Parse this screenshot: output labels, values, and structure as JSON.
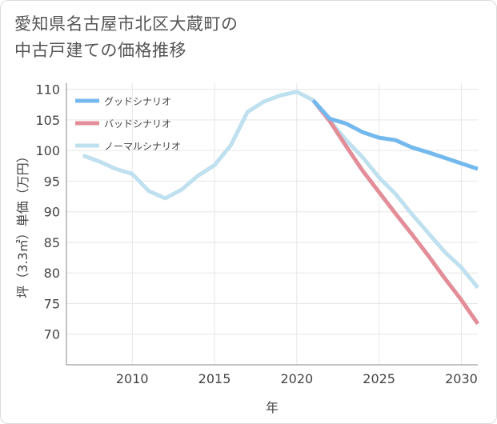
{
  "title": {
    "line1": "愛知県名古屋市北区大蔵町の",
    "line2": "中古戸建ての価格推移"
  },
  "chart_data": {
    "type": "line",
    "title": "愛知県名古屋市北区大蔵町の中古戸建ての価格推移",
    "xlabel": "年",
    "ylabel": "坪（3.3㎡）単価（万円）",
    "xlim": [
      2006,
      2031
    ],
    "ylim": [
      65,
      111
    ],
    "xticks": [
      2010,
      2015,
      2020,
      2025,
      2030
    ],
    "yticks": [
      70,
      75,
      80,
      85,
      90,
      95,
      100,
      105,
      110
    ],
    "legend_position": "top-left",
    "series": [
      {
        "name": "グッドシナリオ",
        "color": "#74b9ee",
        "points": [
          [
            2021,
            108.2
          ],
          [
            2022,
            105.2
          ],
          [
            2023,
            104.4
          ],
          [
            2024,
            103.0
          ],
          [
            2025,
            102.1
          ],
          [
            2026,
            101.7
          ],
          [
            2027,
            100.5
          ],
          [
            2028,
            99.7
          ],
          [
            2029,
            98.8
          ],
          [
            2030,
            97.9
          ],
          [
            2031,
            97.0
          ]
        ]
      },
      {
        "name": "バッドシナリオ",
        "color": "#e28d98",
        "points": [
          [
            2021,
            108.2
          ],
          [
            2022,
            104.8
          ],
          [
            2023,
            100.7
          ],
          [
            2024,
            96.7
          ],
          [
            2025,
            93.2
          ],
          [
            2026,
            89.7
          ],
          [
            2027,
            86.3
          ],
          [
            2028,
            82.8
          ],
          [
            2029,
            79.1
          ],
          [
            2030,
            75.6
          ],
          [
            2031,
            71.7
          ]
        ]
      },
      {
        "name": "ノーマルシナリオ",
        "color": "#bfe0ee",
        "points": [
          [
            2007,
            99.2
          ],
          [
            2008,
            98.2
          ],
          [
            2009,
            97.0
          ],
          [
            2010,
            96.2
          ],
          [
            2011,
            93.4
          ],
          [
            2012,
            92.2
          ],
          [
            2013,
            93.6
          ],
          [
            2014,
            95.9
          ],
          [
            2015,
            97.6
          ],
          [
            2016,
            100.9
          ],
          [
            2017,
            106.3
          ],
          [
            2018,
            108.0
          ],
          [
            2019,
            109.0
          ],
          [
            2020,
            109.6
          ],
          [
            2021,
            108.2
          ],
          [
            2022,
            104.9
          ],
          [
            2023,
            101.7
          ],
          [
            2024,
            98.9
          ],
          [
            2025,
            95.6
          ],
          [
            2026,
            92.9
          ],
          [
            2027,
            89.6
          ],
          [
            2028,
            86.5
          ],
          [
            2029,
            83.4
          ],
          [
            2030,
            80.9
          ],
          [
            2031,
            77.6
          ]
        ]
      }
    ]
  }
}
